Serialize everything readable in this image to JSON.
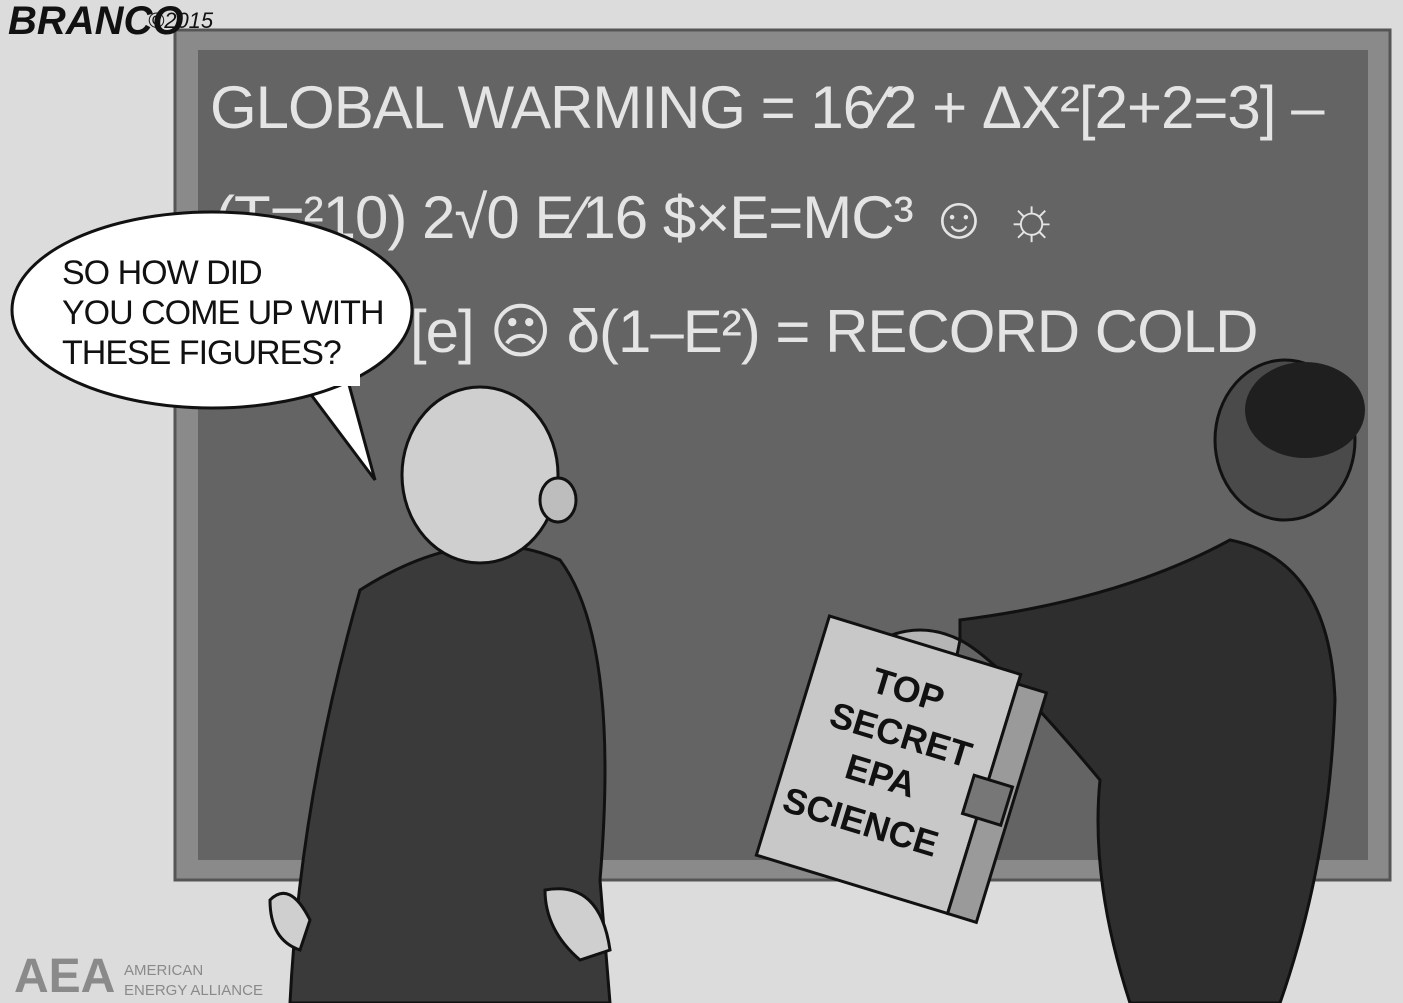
{
  "signature": {
    "artist": "BRANCO",
    "year": "©2015"
  },
  "chalkboard": {
    "lines": [
      "GLOBAL WARMING = 16⁄2 + ΔX²[2+2=3] –",
      "(T=²10) 2√0 E⁄16 $×E=MC³ ☺ ☼",
      "[e] ☹ δ(1–E²) = RECORD COLD"
    ]
  },
  "speech_bubble": {
    "lines": [
      "SO HOW DID",
      "YOU COME UP WITH",
      "THESE FIGURES?"
    ]
  },
  "book": {
    "lines": [
      "TOP",
      "SECRET",
      "EPA",
      "SCIENCE"
    ]
  },
  "logo": {
    "mark": "AEA",
    "name_lines": [
      "AMERICAN",
      "ENERGY ALLIANCE"
    ]
  }
}
